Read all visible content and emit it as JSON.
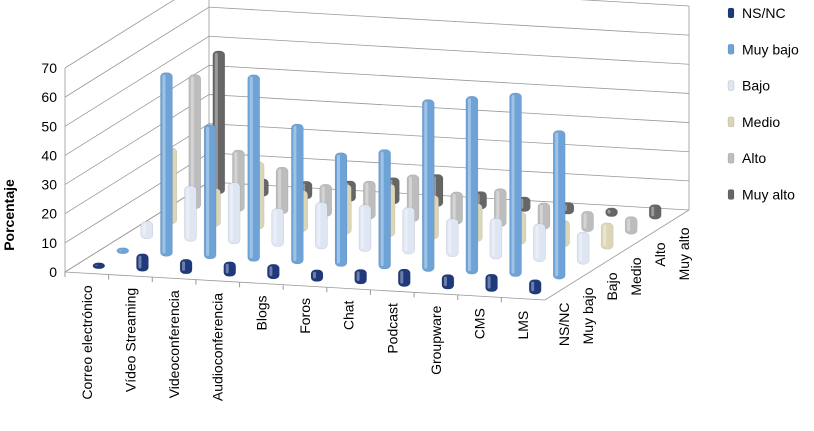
{
  "chart_data": {
    "type": "bar",
    "variant": "3d-column",
    "title": "",
    "xlabel": "",
    "ylabel": "Porcentaje",
    "ylim": [
      0,
      70
    ],
    "yticks": [
      0,
      10,
      20,
      30,
      40,
      50,
      60,
      70
    ],
    "grid": true,
    "legend_position": "right",
    "categories": [
      "Correo electrónico",
      "Vídeo Streaming",
      "Videoconferencia",
      "Audioconferencia",
      "Blogs",
      "Foros",
      "Chat",
      "Podcast",
      "Groupware",
      "CMS",
      "LMS"
    ],
    "series": [
      {
        "name": "NS/NC",
        "color": "#1f3a7a",
        "values": [
          1,
          5,
          4,
          4,
          4,
          3,
          4,
          5,
          4,
          5,
          4
        ]
      },
      {
        "name": "Muy bajo",
        "color": "#6ea3d8",
        "values": [
          1,
          62,
          45,
          63,
          47,
          38,
          40,
          58,
          60,
          62,
          50
        ]
      },
      {
        "name": "Bajo",
        "color": "#dfe6f3",
        "values": [
          5,
          18,
          20,
          12,
          15,
          15,
          15,
          12,
          13,
          12,
          10
        ]
      },
      {
        "name": "Medio",
        "color": "#dcd6b8",
        "values": [
          25,
          12,
          22,
          13,
          16,
          17,
          14,
          12,
          10,
          8,
          8
        ]
      },
      {
        "name": "Alto",
        "color": "#bdbdbd",
        "values": [
          45,
          20,
          15,
          10,
          12,
          15,
          10,
          12,
          8,
          6,
          5
        ]
      },
      {
        "name": "Muy alto",
        "color": "#666666",
        "values": [
          48,
          5,
          5,
          6,
          8,
          10,
          5,
          4,
          3,
          2,
          4
        ]
      }
    ]
  }
}
